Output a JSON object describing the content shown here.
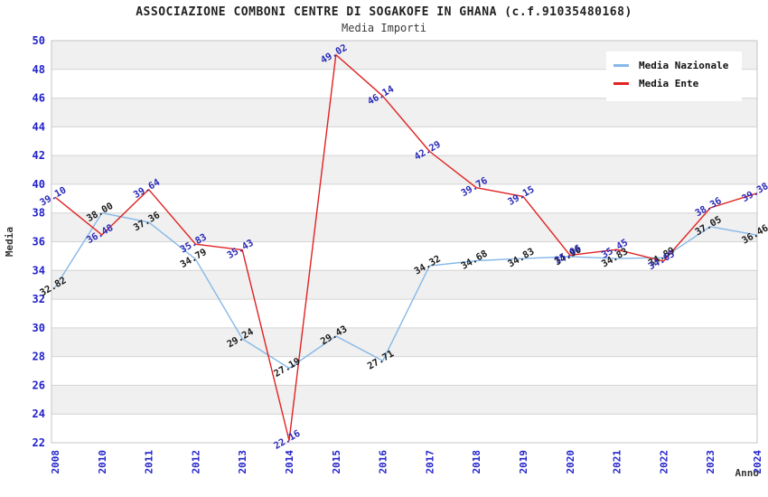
{
  "page": {
    "title": "ASSOCIAZIONE COMBONI CENTRE DI SOGAKOFE IN GHANA (c.f.91035480168)",
    "subtitle": "Media Importi"
  },
  "colors": {
    "nazionale_line": "#85B8E8",
    "ente_line": "#E02222",
    "nazionale_point_label": "#1A1A1A",
    "ente_point_label": "#2929B8",
    "axis_tick_text": "#2222CC",
    "axis_title_text": "#333333",
    "band_gray": "#F0F0F0",
    "band_white": "#FFFFFF",
    "gridline": "#D4D4D4",
    "plot_border": "#C4C4C4"
  },
  "chart_data": {
    "type": "line",
    "title": "ASSOCIAZIONE COMBONI CENTRE DI SOGAKOFE IN GHANA (c.f.91035480168)",
    "subtitle": "Media Importi",
    "xlabel": "Anno",
    "ylabel": "Media",
    "ylim": [
      22,
      50
    ],
    "y_ticks": [
      22,
      24,
      26,
      28,
      30,
      32,
      34,
      36,
      38,
      40,
      42,
      44,
      46,
      48,
      50
    ],
    "grid": "horizontal alternating bands",
    "legend_position": "top-right",
    "categories": [
      "2008",
      "2010",
      "2011",
      "2012",
      "2013",
      "2014",
      "2015",
      "2016",
      "2017",
      "2018",
      "2019",
      "2020",
      "2021",
      "2022",
      "2023",
      "2024"
    ],
    "series": [
      {
        "name": "Media Nazionale",
        "color": "#85B8E8",
        "label_color": "#1A1A1A",
        "values": [
          32.82,
          38.0,
          37.36,
          34.79,
          29.24,
          27.19,
          29.43,
          27.71,
          34.32,
          34.68,
          34.83,
          34.96,
          34.83,
          34.89,
          37.05,
          36.46
        ]
      },
      {
        "name": "Media Ente",
        "color": "#E02222",
        "label_color": "#2929B8",
        "values": [
          39.1,
          36.48,
          39.64,
          35.83,
          35.43,
          22.16,
          49.02,
          46.14,
          42.29,
          39.76,
          39.15,
          35.06,
          35.45,
          34.65,
          38.36,
          39.38
        ]
      }
    ]
  }
}
